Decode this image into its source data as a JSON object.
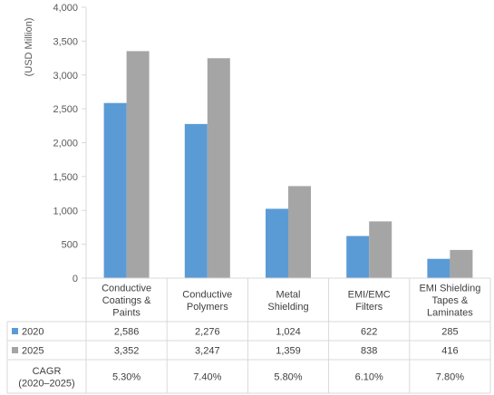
{
  "chart_data": {
    "type": "bar",
    "ylabel": "(USD Million)",
    "ylim": [
      0,
      4000
    ],
    "yticks": [
      "0",
      "500",
      "1,000",
      "1,500",
      "2,000",
      "2,500",
      "3,000",
      "3,500",
      "4,000"
    ],
    "ytick_values": [
      0,
      500,
      1000,
      1500,
      2000,
      2500,
      3000,
      3500,
      4000
    ],
    "grid": false,
    "legend": "table-rows",
    "categories": [
      [
        "Conductive",
        "Coatings &",
        "Paints"
      ],
      [
        "Conductive",
        "Polymers"
      ],
      [
        "Metal",
        "Shielding"
      ],
      [
        "EMI/EMC",
        "Filters"
      ],
      [
        "EMI Shielding",
        "Tapes &",
        "Laminates"
      ]
    ],
    "series": [
      {
        "name": "2020",
        "color": "#5b9bd5",
        "values": [
          2586,
          2276,
          1024,
          622,
          285
        ],
        "labels": [
          "2,586",
          "2,276",
          "1,024",
          "622",
          "285"
        ]
      },
      {
        "name": "2025",
        "color": "#a5a5a5",
        "values": [
          3352,
          3247,
          1359,
          838,
          416
        ],
        "labels": [
          "3,352",
          "3,247",
          "1,359",
          "838",
          "416"
        ]
      }
    ],
    "extra_row": {
      "label": [
        "CAGR",
        "(2020–2025)"
      ],
      "values": [
        "5.30%",
        "7.40%",
        "5.80%",
        "6.10%",
        "7.80%"
      ]
    }
  }
}
